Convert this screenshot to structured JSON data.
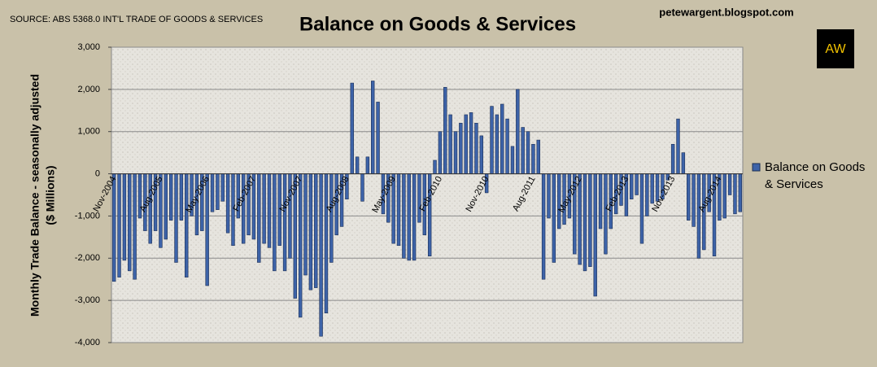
{
  "chart_data": {
    "type": "bar",
    "title": "Balance on Goods & Services",
    "source": "SOURCE: ABS 5368.0 INT'L TRADE OF GOODS & SERVICES",
    "website": "petewargent.blogspot.com",
    "logo": "AW",
    "ylabel": [
      "Monthly Trade Balance - seasonally adjusted",
      "($ Millions)"
    ],
    "categories": [
      "Nov-2004",
      null,
      null,
      null,
      null,
      null,
      null,
      null,
      null,
      "Aug-2005",
      null,
      null,
      null,
      null,
      null,
      null,
      null,
      null,
      "May-2006",
      null,
      null,
      null,
      null,
      null,
      null,
      null,
      null,
      "Feb-2007",
      null,
      null,
      null,
      null,
      null,
      null,
      null,
      null,
      "Nov-2007",
      null,
      null,
      null,
      null,
      null,
      null,
      null,
      null,
      "Aug-2008",
      null,
      null,
      null,
      null,
      null,
      null,
      null,
      null,
      "May-2009",
      null,
      null,
      null,
      null,
      null,
      null,
      null,
      null,
      "Feb-2010",
      null,
      null,
      null,
      null,
      null,
      null,
      null,
      null,
      "Nov-2010",
      null,
      null,
      null,
      null,
      null,
      null,
      null,
      null,
      "Aug-2011",
      null,
      null,
      null,
      null,
      null,
      null,
      null,
      null,
      "May-2012",
      null,
      null,
      null,
      null,
      null,
      null,
      null,
      null,
      "Feb-2013",
      null,
      null,
      null,
      null,
      null,
      null,
      null,
      null,
      "Nov-2013",
      null,
      null,
      null,
      null,
      null,
      null,
      null,
      null,
      "Aug-2014",
      null,
      null,
      null,
      null
    ],
    "series": [
      {
        "name": "Balance on Goods & Services",
        "color": "#3d63a8",
        "values": [
          -2550,
          -2450,
          -2050,
          -2300,
          -2500,
          -1050,
          -1350,
          -1650,
          -1350,
          -1750,
          -1550,
          -1100,
          -2100,
          -1100,
          -2450,
          -1000,
          -1450,
          -1350,
          -2650,
          -900,
          -850,
          -650,
          -1400,
          -1700,
          -1050,
          -1650,
          -1450,
          -1550,
          -2100,
          -1650,
          -1750,
          -2300,
          -1700,
          -2300,
          -2000,
          -2950,
          -3400,
          -2400,
          -2750,
          -2700,
          -3850,
          -3300,
          -2100,
          -1450,
          -1250,
          -600,
          2150,
          400,
          -650,
          400,
          2200,
          1700,
          -950,
          -1150,
          -1650,
          -1700,
          -2000,
          -2050,
          -2050,
          -1150,
          -1450,
          -1950,
          320,
          1000,
          2050,
          1400,
          1000,
          1200,
          1400,
          1450,
          1200,
          900,
          -450,
          1600,
          1400,
          1650,
          1300,
          650,
          2000,
          1100,
          1000,
          700,
          800,
          -2500,
          -1050,
          -2100,
          -1300,
          -1200,
          -1050,
          -1900,
          -2150,
          -2300,
          -2200,
          -2900,
          -1300,
          -1900,
          -1300,
          -950,
          -750,
          -1000,
          -600,
          -500,
          -1650,
          -1000,
          -700,
          -650,
          -600,
          -150,
          700,
          1300,
          500,
          -1100,
          -1250,
          -2000,
          -1800,
          -900,
          -1950,
          -1100,
          -1050,
          -500,
          -950,
          -900
        ]
      }
    ],
    "ylim": [
      -4000,
      3000
    ],
    "yticks": [
      {
        "value": -4000,
        "label": "-4,000"
      },
      {
        "value": -3000,
        "label": "-3,000"
      },
      {
        "value": -2000,
        "label": "-2,000"
      },
      {
        "value": -1000,
        "label": "-1,000"
      },
      0,
      {
        "value": 1000,
        "label": "1,000"
      },
      {
        "value": 2000,
        "label": "2,000"
      },
      {
        "value": 3000,
        "label": "3,000"
      }
    ],
    "grid": true
  }
}
